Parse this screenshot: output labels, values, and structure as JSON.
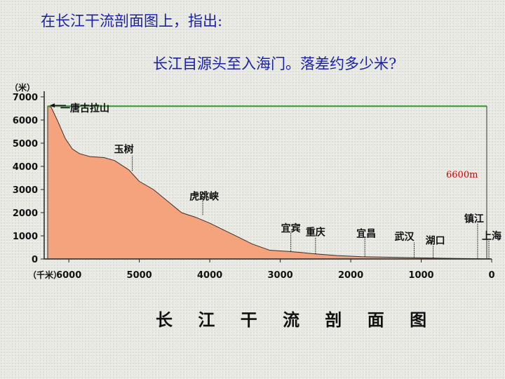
{
  "slide": {
    "question_line1": "在长江干流剖面图上，指出:",
    "question_line2": "长江自源头至入海门。落差约多少米?"
  },
  "colors": {
    "question_text": "#1a22aa",
    "profile_fill": "#f4a37c",
    "source_line": "#2e9a2e",
    "diff_label": "#cc0000"
  },
  "chart_data": {
    "type": "area",
    "title": "长 江 干 流 剖 面 图",
    "xlabel": "（千米）",
    "ylabel": "（米）",
    "xlim": [
      6350,
      0
    ],
    "ylim": [
      0,
      7000
    ],
    "x_ticks": [
      6000,
      5000,
      4000,
      3000,
      2000,
      1000,
      0
    ],
    "y_ticks": [
      0,
      1000,
      2000,
      3000,
      4000,
      5000,
      6000,
      7000
    ],
    "grid": false,
    "profile": [
      {
        "x": 6300,
        "y": 6600
      },
      {
        "x": 6250,
        "y": 6550
      },
      {
        "x": 6150,
        "y": 5900
      },
      {
        "x": 6050,
        "y": 5200
      },
      {
        "x": 5950,
        "y": 4750
      },
      {
        "x": 5850,
        "y": 4550
      },
      {
        "x": 5700,
        "y": 4420
      },
      {
        "x": 5500,
        "y": 4380
      },
      {
        "x": 5350,
        "y": 4250
      },
      {
        "x": 5150,
        "y": 3850
      },
      {
        "x": 5000,
        "y": 3350
      },
      {
        "x": 4800,
        "y": 3000
      },
      {
        "x": 4600,
        "y": 2500
      },
      {
        "x": 4400,
        "y": 2000
      },
      {
        "x": 4200,
        "y": 1800
      },
      {
        "x": 4000,
        "y": 1550
      },
      {
        "x": 3800,
        "y": 1250
      },
      {
        "x": 3600,
        "y": 950
      },
      {
        "x": 3400,
        "y": 650
      },
      {
        "x": 3150,
        "y": 380
      },
      {
        "x": 2900,
        "y": 330
      },
      {
        "x": 2700,
        "y": 280
      },
      {
        "x": 2500,
        "y": 220
      },
      {
        "x": 2200,
        "y": 150
      },
      {
        "x": 1850,
        "y": 100
      },
      {
        "x": 1500,
        "y": 80
      },
      {
        "x": 1000,
        "y": 50
      },
      {
        "x": 500,
        "y": 25
      },
      {
        "x": 50,
        "y": 5
      },
      {
        "x": 0,
        "y": 0
      }
    ],
    "source_level": 6600,
    "annotations": [
      {
        "label": "一唐古拉山",
        "x": 6300,
        "y": 6600
      },
      {
        "label": "玉树",
        "x": 5100,
        "y": 3800
      },
      {
        "label": "虎跳峡",
        "x": 4100,
        "y": 1900
      },
      {
        "label": "宜宾",
        "x": 2850,
        "y": 330
      },
      {
        "label": "重庆",
        "x": 2500,
        "y": 220
      },
      {
        "label": "宜昌",
        "x": 1800,
        "y": 100
      },
      {
        "label": "武汉",
        "x": 1100,
        "y": 55
      },
      {
        "label": "湖口",
        "x": 830,
        "y": 45
      },
      {
        "label": "镇江",
        "x": 200,
        "y": 12
      },
      {
        "label": "上海",
        "x": 40,
        "y": 4
      }
    ],
    "difference_label": "6600m"
  }
}
